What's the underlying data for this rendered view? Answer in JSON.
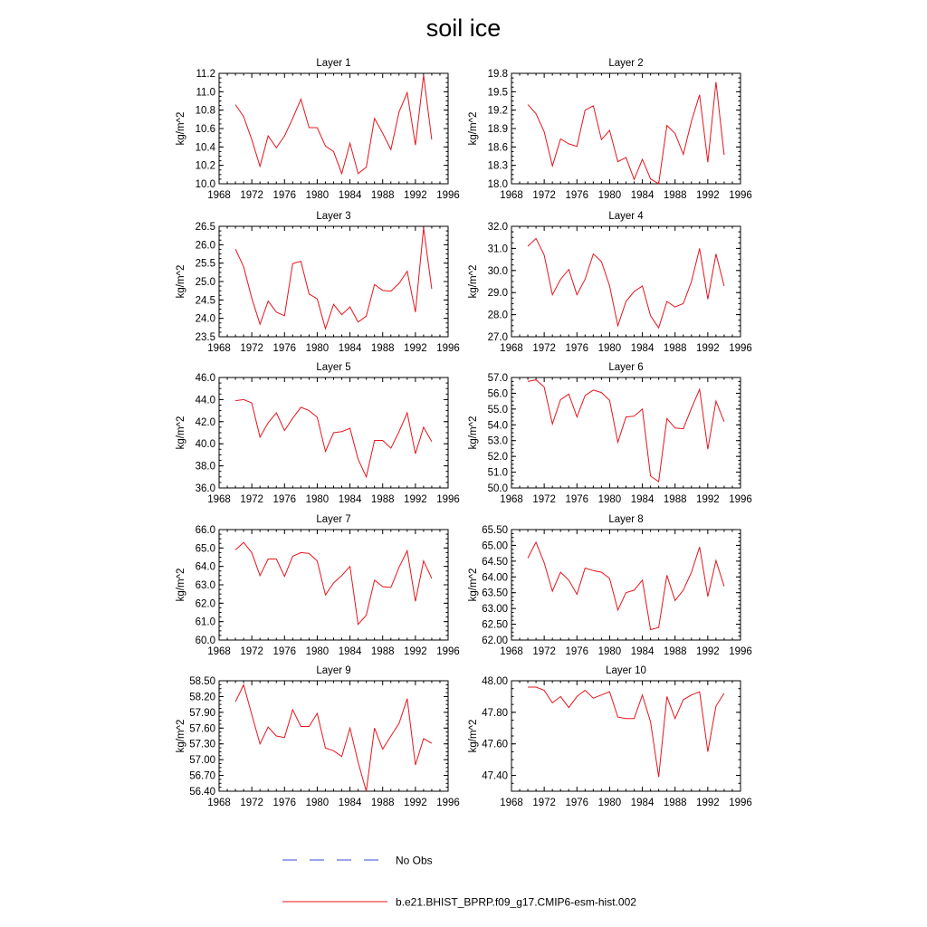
{
  "figure": {
    "title": "soil ice",
    "line_color": "#e8141c",
    "obs_color": "#3a48d6"
  },
  "legend": {
    "obs_label": "No Obs",
    "model_label": "b.e21.BHIST_BPRP.f09_g17.CMIP6-esm-hist.002"
  },
  "chart_data": [
    {
      "type": "line",
      "title": "Layer 1",
      "xlabel": "",
      "ylabel": "kg/m^2",
      "xlim": [
        1968,
        1996
      ],
      "ylim": [
        10.0,
        11.2
      ],
      "xticks": [
        1968,
        1972,
        1976,
        1980,
        1984,
        1988,
        1992,
        1996
      ],
      "yticks": [
        "10.0",
        "10.2",
        "10.4",
        "10.6",
        "10.8",
        "11.0",
        "11.2"
      ],
      "x": [
        1970,
        1971,
        1972,
        1973,
        1974,
        1975,
        1976,
        1977,
        1978,
        1979,
        1980,
        1981,
        1982,
        1983,
        1984,
        1985,
        1986,
        1987,
        1988,
        1989,
        1990,
        1991,
        1992,
        1993,
        1994
      ],
      "series": [
        {
          "name": "b.e21.BHIST_BPRP.f09_g17.CMIP6-esm-hist.002",
          "values": [
            10.86,
            10.73,
            10.48,
            10.19,
            10.52,
            10.39,
            10.52,
            10.71,
            10.92,
            10.61,
            10.61,
            10.41,
            10.35,
            10.11,
            10.44,
            10.11,
            10.18,
            10.71,
            10.55,
            10.37,
            10.78,
            10.99,
            10.42,
            11.18,
            10.48
          ]
        }
      ]
    },
    {
      "type": "line",
      "title": "Layer 2",
      "xlabel": "",
      "ylabel": "kg/m^2",
      "xlim": [
        1968,
        1996
      ],
      "ylim": [
        18.0,
        19.8
      ],
      "xticks": [
        1968,
        1972,
        1976,
        1980,
        1984,
        1988,
        1992,
        1996
      ],
      "yticks": [
        "18.0",
        "18.3",
        "18.6",
        "18.9",
        "19.2",
        "19.5",
        "19.8"
      ],
      "x": [
        1970,
        1971,
        1972,
        1973,
        1974,
        1975,
        1976,
        1977,
        1978,
        1979,
        1980,
        1981,
        1982,
        1983,
        1984,
        1985,
        1986,
        1987,
        1988,
        1989,
        1990,
        1991,
        1992,
        1993,
        1994
      ],
      "series": [
        {
          "name": "b.e21.BHIST_BPRP.f09_g17.CMIP6-esm-hist.002",
          "values": [
            19.29,
            19.14,
            18.85,
            18.29,
            18.73,
            18.65,
            18.61,
            19.2,
            19.27,
            18.72,
            18.87,
            18.36,
            18.43,
            18.07,
            18.4,
            18.08,
            18.0,
            18.95,
            18.82,
            18.48,
            19.02,
            19.45,
            18.35,
            19.66,
            18.47
          ]
        }
      ]
    },
    {
      "type": "line",
      "title": "Layer 3",
      "xlabel": "",
      "ylabel": "kg/m^2",
      "xlim": [
        1968,
        1996
      ],
      "ylim": [
        23.5,
        26.5
      ],
      "xticks": [
        1968,
        1972,
        1976,
        1980,
        1984,
        1988,
        1992,
        1996
      ],
      "yticks": [
        "23.5",
        "24.0",
        "24.5",
        "25.0",
        "25.5",
        "26.0",
        "26.5"
      ],
      "x": [
        1970,
        1971,
        1972,
        1973,
        1974,
        1975,
        1976,
        1977,
        1978,
        1979,
        1980,
        1981,
        1982,
        1983,
        1984,
        1985,
        1986,
        1987,
        1988,
        1989,
        1990,
        1991,
        1992,
        1993,
        1994
      ],
      "series": [
        {
          "name": "b.e21.BHIST_BPRP.f09_g17.CMIP6-esm-hist.002",
          "values": [
            25.88,
            25.4,
            24.55,
            23.84,
            24.47,
            24.17,
            24.07,
            25.49,
            25.55,
            24.66,
            24.53,
            23.72,
            24.38,
            24.1,
            24.31,
            23.9,
            24.06,
            24.92,
            24.76,
            24.74,
            24.95,
            25.28,
            24.17,
            26.46,
            24.8
          ]
        }
      ]
    },
    {
      "type": "line",
      "title": "Layer 4",
      "xlabel": "",
      "ylabel": "kg/m^2",
      "xlim": [
        1968,
        1996
      ],
      "ylim": [
        27.0,
        32.0
      ],
      "xticks": [
        1968,
        1972,
        1976,
        1980,
        1984,
        1988,
        1992,
        1996
      ],
      "yticks": [
        "27.0",
        "28.0",
        "29.0",
        "30.0",
        "31.0",
        "32.0"
      ],
      "x": [
        1970,
        1971,
        1972,
        1973,
        1974,
        1975,
        1976,
        1977,
        1978,
        1979,
        1980,
        1981,
        1982,
        1983,
        1984,
        1985,
        1986,
        1987,
        1988,
        1989,
        1990,
        1991,
        1992,
        1993,
        1994
      ],
      "series": [
        {
          "name": "b.e21.BHIST_BPRP.f09_g17.CMIP6-esm-hist.002",
          "values": [
            31.1,
            31.45,
            30.7,
            28.9,
            29.6,
            30.05,
            28.9,
            29.6,
            30.75,
            30.4,
            29.3,
            27.5,
            28.6,
            29.05,
            29.3,
            27.95,
            27.4,
            28.6,
            28.35,
            28.5,
            29.5,
            31.0,
            28.7,
            30.75,
            29.3
          ]
        }
      ]
    },
    {
      "type": "line",
      "title": "Layer 5",
      "xlabel": "",
      "ylabel": "kg/m^2",
      "xlim": [
        1968,
        1996
      ],
      "ylim": [
        36.0,
        46.0
      ],
      "xticks": [
        1968,
        1972,
        1976,
        1980,
        1984,
        1988,
        1992,
        1996
      ],
      "yticks": [
        "36.0",
        "38.0",
        "40.0",
        "42.0",
        "44.0",
        "46.0"
      ],
      "x": [
        1970,
        1971,
        1972,
        1973,
        1974,
        1975,
        1976,
        1977,
        1978,
        1979,
        1980,
        1981,
        1982,
        1983,
        1984,
        1985,
        1986,
        1987,
        1988,
        1989,
        1990,
        1991,
        1992,
        1993,
        1994
      ],
      "series": [
        {
          "name": "b.e21.BHIST_BPRP.f09_g17.CMIP6-esm-hist.002",
          "values": [
            43.9,
            44.0,
            43.7,
            40.6,
            41.9,
            42.8,
            41.2,
            42.3,
            43.3,
            43.0,
            42.4,
            39.3,
            41.0,
            41.1,
            41.4,
            38.6,
            37.0,
            40.3,
            40.3,
            39.6,
            41.1,
            42.8,
            39.1,
            41.5,
            40.2
          ]
        }
      ]
    },
    {
      "type": "line",
      "title": "Layer 6",
      "xlabel": "",
      "ylabel": "kg/m^2",
      "xlim": [
        1968,
        1996
      ],
      "ylim": [
        50.0,
        57.0
      ],
      "xticks": [
        1968,
        1972,
        1976,
        1980,
        1984,
        1988,
        1992,
        1996
      ],
      "yticks": [
        "50.0",
        "51.0",
        "52.0",
        "53.0",
        "54.0",
        "55.0",
        "56.0",
        "57.0"
      ],
      "x": [
        1970,
        1971,
        1972,
        1973,
        1974,
        1975,
        1976,
        1977,
        1978,
        1979,
        1980,
        1981,
        1982,
        1983,
        1984,
        1985,
        1986,
        1987,
        1988,
        1989,
        1990,
        1991,
        1992,
        1993,
        1994
      ],
      "series": [
        {
          "name": "b.e21.BHIST_BPRP.f09_g17.CMIP6-esm-hist.002",
          "values": [
            56.75,
            56.85,
            56.4,
            54.05,
            55.6,
            55.95,
            54.5,
            55.85,
            56.2,
            56.05,
            55.55,
            52.9,
            54.5,
            54.55,
            55.0,
            50.75,
            50.4,
            54.4,
            53.8,
            53.75,
            55.05,
            56.25,
            52.45,
            55.5,
            54.2
          ]
        }
      ]
    },
    {
      "type": "line",
      "title": "Layer 7",
      "xlabel": "",
      "ylabel": "kg/m^2",
      "xlim": [
        1968,
        1996
      ],
      "ylim": [
        60.0,
        66.0
      ],
      "xticks": [
        1968,
        1972,
        1976,
        1980,
        1984,
        1988,
        1992,
        1996
      ],
      "yticks": [
        "60.0",
        "61.0",
        "62.0",
        "63.0",
        "64.0",
        "65.0",
        "66.0"
      ],
      "x": [
        1970,
        1971,
        1972,
        1973,
        1974,
        1975,
        1976,
        1977,
        1978,
        1979,
        1980,
        1981,
        1982,
        1983,
        1984,
        1985,
        1986,
        1987,
        1988,
        1989,
        1990,
        1991,
        1992,
        1993,
        1994
      ],
      "series": [
        {
          "name": "b.e21.BHIST_BPRP.f09_g17.CMIP6-esm-hist.002",
          "values": [
            64.9,
            65.3,
            64.75,
            63.5,
            64.4,
            64.4,
            63.45,
            64.55,
            64.75,
            64.7,
            64.3,
            62.45,
            63.1,
            63.5,
            64.0,
            60.85,
            61.35,
            63.25,
            62.9,
            62.85,
            63.95,
            64.85,
            62.1,
            64.3,
            63.35
          ]
        }
      ]
    },
    {
      "type": "line",
      "title": "Layer 8",
      "xlabel": "",
      "ylabel": "kg/m^2",
      "xlim": [
        1968,
        1996
      ],
      "ylim": [
        62.0,
        65.5
      ],
      "xticks": [
        1968,
        1972,
        1976,
        1980,
        1984,
        1988,
        1992,
        1996
      ],
      "yticks": [
        "62.00",
        "62.50",
        "63.00",
        "63.50",
        "64.00",
        "64.50",
        "65.00",
        "65.50"
      ],
      "x": [
        1970,
        1971,
        1972,
        1973,
        1974,
        1975,
        1976,
        1977,
        1978,
        1979,
        1980,
        1981,
        1982,
        1983,
        1984,
        1985,
        1986,
        1987,
        1988,
        1989,
        1990,
        1991,
        1992,
        1993,
        1994
      ],
      "series": [
        {
          "name": "b.e21.BHIST_BPRP.f09_g17.CMIP6-esm-hist.002",
          "values": [
            64.6,
            65.1,
            64.45,
            63.55,
            64.15,
            63.9,
            63.45,
            64.28,
            64.2,
            64.15,
            63.95,
            62.95,
            63.5,
            63.58,
            63.9,
            62.33,
            62.4,
            64.05,
            63.25,
            63.58,
            64.15,
            64.95,
            63.38,
            64.52,
            63.7
          ]
        }
      ]
    },
    {
      "type": "line",
      "title": "Layer 9",
      "xlabel": "",
      "ylabel": "kg/m^2",
      "xlim": [
        1968,
        1996
      ],
      "ylim": [
        56.4,
        58.5
      ],
      "xticks": [
        1968,
        1972,
        1976,
        1980,
        1984,
        1988,
        1992,
        1996
      ],
      "yticks": [
        "56.40",
        "56.70",
        "57.00",
        "57.30",
        "57.60",
        "57.90",
        "58.20",
        "58.50"
      ],
      "x": [
        1970,
        1971,
        1972,
        1973,
        1974,
        1975,
        1976,
        1977,
        1978,
        1979,
        1980,
        1981,
        1982,
        1983,
        1984,
        1985,
        1986,
        1987,
        1988,
        1989,
        1990,
        1991,
        1992,
        1993,
        1994
      ],
      "series": [
        {
          "name": "b.e21.BHIST_BPRP.f09_g17.CMIP6-esm-hist.002",
          "values": [
            58.1,
            58.42,
            57.86,
            57.3,
            57.62,
            57.45,
            57.42,
            57.95,
            57.63,
            57.63,
            57.88,
            57.22,
            57.17,
            57.06,
            57.6,
            56.95,
            56.4,
            57.6,
            57.2,
            57.45,
            57.69,
            58.16,
            56.9,
            57.4,
            57.31
          ]
        }
      ]
    },
    {
      "type": "line",
      "title": "Layer 10",
      "xlabel": "",
      "ylabel": "kg/m^2",
      "xlim": [
        1968,
        1996
      ],
      "ylim": [
        47.3,
        48.0
      ],
      "xticks": [
        1968,
        1972,
        1976,
        1980,
        1984,
        1988,
        1992,
        1996
      ],
      "yticks": [
        "47.40",
        "47.60",
        "47.80",
        "48.00"
      ],
      "ytickvalues": [
        47.4,
        47.6,
        47.8,
        48.0
      ],
      "x": [
        1970,
        1971,
        1972,
        1973,
        1974,
        1975,
        1976,
        1977,
        1978,
        1979,
        1980,
        1981,
        1982,
        1983,
        1984,
        1985,
        1986,
        1987,
        1988,
        1989,
        1990,
        1991,
        1992,
        1993,
        1994
      ],
      "series": [
        {
          "name": "b.e21.BHIST_BPRP.f09_g17.CMIP6-esm-hist.002",
          "values": [
            47.96,
            47.96,
            47.94,
            47.86,
            47.9,
            47.83,
            47.9,
            47.94,
            47.89,
            47.91,
            47.93,
            47.77,
            47.76,
            47.76,
            47.91,
            47.74,
            47.39,
            47.9,
            47.76,
            47.88,
            47.91,
            47.93,
            47.55,
            47.84,
            47.92
          ]
        }
      ]
    }
  ]
}
